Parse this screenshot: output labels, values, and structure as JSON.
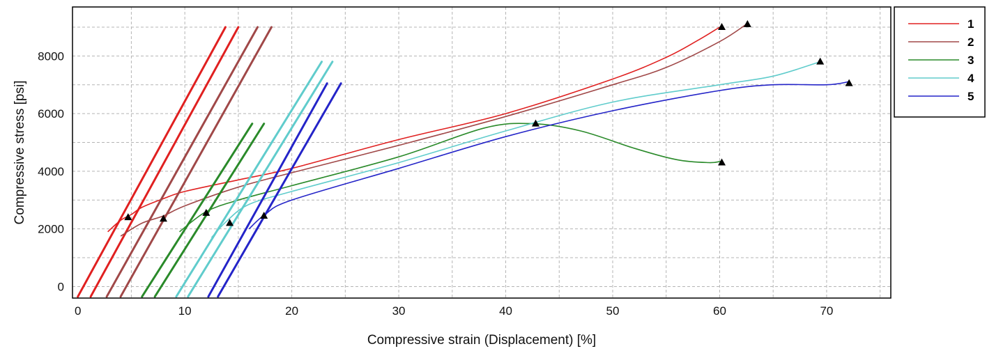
{
  "chart_data": {
    "type": "line",
    "title": "",
    "xlabel": "Compressive strain (Displacement) [%]",
    "ylabel": "Compressive stress [psi]",
    "xlim": [
      -0.5,
      76
    ],
    "ylim": [
      -400,
      9700
    ],
    "xticks": [
      0,
      10,
      20,
      30,
      40,
      50,
      60,
      70
    ],
    "yticks": [
      0,
      2000,
      4000,
      6000,
      8000
    ],
    "grid": true,
    "legend_position": "right",
    "series": [
      {
        "name": "1",
        "color": "#e02020",
        "curve": [
          [
            2.8,
            1900
          ],
          [
            4,
            2300
          ],
          [
            5,
            2500
          ],
          [
            6,
            2750
          ],
          [
            8,
            3050
          ],
          [
            10,
            3300
          ],
          [
            15,
            3700
          ],
          [
            20,
            4100
          ],
          [
            30,
            5100
          ],
          [
            40,
            6000
          ],
          [
            50,
            7200
          ],
          [
            55,
            7950
          ],
          [
            58,
            8550
          ],
          [
            60,
            9000
          ]
        ],
        "ramps": [
          [
            [
              0,
              -350
            ],
            [
              13.8,
              9000
            ]
          ],
          [
            [
              1.2,
              -350
            ],
            [
              15,
              9000
            ]
          ]
        ],
        "markers": [
          [
            4.7,
            2400
          ],
          [
            60.2,
            9000
          ]
        ]
      },
      {
        "name": "2",
        "color": "#a04848",
        "curve": [
          [
            4,
            1750
          ],
          [
            6,
            2200
          ],
          [
            8,
            2450
          ],
          [
            10,
            2800
          ],
          [
            15,
            3450
          ],
          [
            20,
            3950
          ],
          [
            30,
            4900
          ],
          [
            40,
            5900
          ],
          [
            50,
            7000
          ],
          [
            55,
            7600
          ],
          [
            60,
            8500
          ],
          [
            62.5,
            9100
          ]
        ],
        "ramps": [
          [
            [
              2.7,
              -350
            ],
            [
              16.8,
              9000
            ]
          ],
          [
            [
              4,
              -350
            ],
            [
              18.1,
              9000
            ]
          ]
        ],
        "markers": [
          [
            8,
            2350
          ],
          [
            62.6,
            9100
          ]
        ]
      },
      {
        "name": "3",
        "color": "#2a8a2a",
        "curve": [
          [
            9.5,
            1900
          ],
          [
            12,
            2600
          ],
          [
            15,
            3000
          ],
          [
            20,
            3500
          ],
          [
            30,
            4500
          ],
          [
            38,
            5500
          ],
          [
            42.5,
            5650
          ],
          [
            47,
            5400
          ],
          [
            52,
            4800
          ],
          [
            56,
            4400
          ],
          [
            59,
            4300
          ],
          [
            60.2,
            4350
          ]
        ],
        "ramps": [
          [
            [
              6,
              -350
            ],
            [
              16.3,
              5650
            ]
          ],
          [
            [
              7.2,
              -350
            ],
            [
              17.4,
              5650
            ]
          ]
        ],
        "markers": [
          [
            12,
            2550
          ],
          [
            42.8,
            5650
          ],
          [
            60.2,
            4300
          ]
        ]
      },
      {
        "name": "4",
        "color": "#60cccc",
        "curve": [
          [
            12.5,
            1700
          ],
          [
            14,
            2300
          ],
          [
            16,
            2850
          ],
          [
            20,
            3300
          ],
          [
            30,
            4300
          ],
          [
            40,
            5400
          ],
          [
            50,
            6400
          ],
          [
            60,
            7000
          ],
          [
            65,
            7300
          ],
          [
            69.4,
            7800
          ]
        ],
        "ramps": [
          [
            [
              9.2,
              -350
            ],
            [
              22.8,
              7800
            ]
          ],
          [
            [
              10.3,
              -350
            ],
            [
              23.8,
              7800
            ]
          ]
        ],
        "markers": [
          [
            14.2,
            2200
          ],
          [
            69.4,
            7800
          ]
        ]
      },
      {
        "name": "5",
        "color": "#2424c8",
        "curve": [
          [
            16,
            2000
          ],
          [
            17.5,
            2500
          ],
          [
            20,
            3000
          ],
          [
            30,
            4100
          ],
          [
            40,
            5200
          ],
          [
            50,
            6100
          ],
          [
            60,
            6800
          ],
          [
            65,
            7000
          ],
          [
            70,
            7000
          ],
          [
            72,
            7100
          ]
        ],
        "ramps": [
          [
            [
              12.2,
              -350
            ],
            [
              23.3,
              7050
            ]
          ],
          [
            [
              13.1,
              -350
            ],
            [
              24.6,
              7050
            ]
          ]
        ],
        "markers": [
          [
            17.4,
            2450
          ],
          [
            72.1,
            7050
          ]
        ]
      }
    ]
  }
}
